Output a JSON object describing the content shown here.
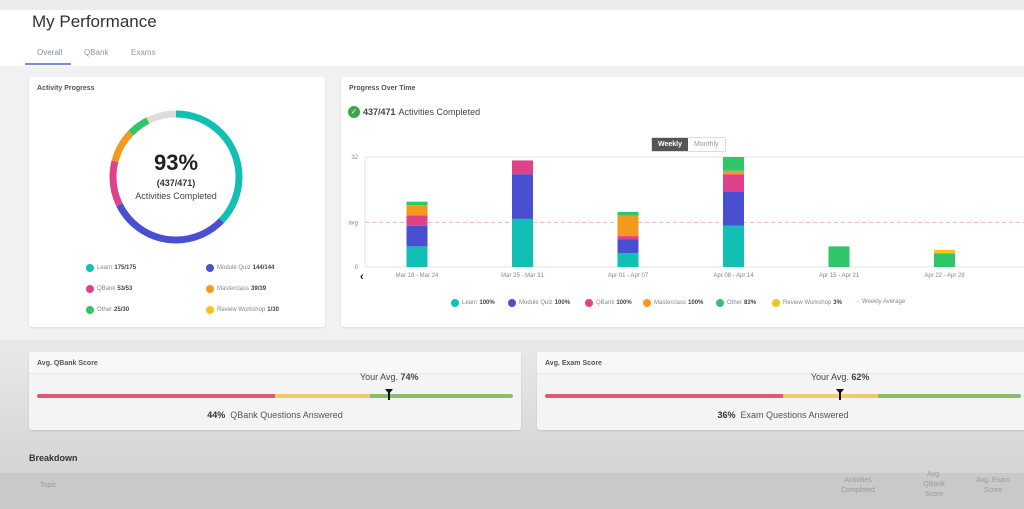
{
  "header": {
    "title": "My Performance",
    "tabs": [
      {
        "label": "Overall",
        "active": true
      },
      {
        "label": "QBank"
      },
      {
        "label": "Exams"
      }
    ]
  },
  "activity_progress": {
    "title": "Activity Progress",
    "percent": "93%",
    "fraction": "(437/471)",
    "caption": "Activities Completed",
    "total": 471,
    "remaining_color": "#dddddd",
    "items": [
      {
        "label": "Learn",
        "value": "175/175",
        "done": 175,
        "color": "#12bfb5"
      },
      {
        "label": "Module Quiz",
        "value": "144/144",
        "done": 144,
        "color": "#4a4fd1"
      },
      {
        "label": "QBank",
        "value": "53/53",
        "done": 53,
        "color": "#e0428a"
      },
      {
        "label": "Masterclass",
        "value": "39/39",
        "done": 39,
        "color": "#f39a1e"
      },
      {
        "label": "Other",
        "value": "25/30",
        "done": 25,
        "color": "#2fc56a"
      },
      {
        "label": "Review Workshop",
        "value": "1/30",
        "done": 1,
        "color": "#f4c51c"
      }
    ]
  },
  "progress_over_time": {
    "title": "Progress Over Time",
    "summary_value": "437/471",
    "summary_label": "Activities Completed",
    "toggle": {
      "weekly": "Weekly",
      "monthly": "Monthly",
      "selected": "Weekly"
    },
    "prev_icon": "‹"
  },
  "chart_data": {
    "type": "bar",
    "stacked": true,
    "categories": [
      "Mar 18 - Mar 24",
      "Mar 25 - Mar 31",
      "Apr 01 - Apr 07",
      "Apr 08 - Apr 14",
      "Apr 15 - Apr 21",
      "Apr 22 - Apr 28"
    ],
    "yticks": [
      "0",
      "avg",
      "32"
    ],
    "ylim": [
      0,
      32
    ],
    "weekly_average": 13,
    "series": [
      {
        "name": "Learn",
        "pct": "100%",
        "color": "#12bfb5",
        "values": [
          6,
          14,
          4,
          12,
          0,
          0
        ]
      },
      {
        "name": "Module Quiz",
        "pct": "100%",
        "color": "#4a4fd1",
        "values": [
          6,
          13,
          4,
          10,
          0,
          0
        ]
      },
      {
        "name": "QBank",
        "pct": "100%",
        "color": "#e0428a",
        "values": [
          3,
          4,
          1,
          5,
          0,
          0
        ]
      },
      {
        "name": "Masterclass",
        "pct": "100%",
        "color": "#f39a1e",
        "values": [
          3,
          0,
          6,
          1,
          0,
          0
        ]
      },
      {
        "name": "Other",
        "pct": "83%",
        "color": "#2fc56a",
        "values": [
          1,
          0,
          1,
          4,
          6,
          4
        ]
      },
      {
        "name": "Review Workshop",
        "pct": "3%",
        "color": "#f4c51c",
        "values": [
          0,
          0,
          0,
          0,
          0,
          1
        ]
      }
    ],
    "avg_legend": "Weekly Average",
    "grid": false,
    "legend": "bottom"
  },
  "qbank_score": {
    "title": "Avg. QBank Score",
    "avg_label": "Your Avg.",
    "avg_value": "74%",
    "avg": 74,
    "answered_value": "44%",
    "answered_label": "QBank Questions Answered"
  },
  "exam_score": {
    "title": "Avg. Exam Score",
    "avg_label": "Your Avg.",
    "avg_value": "62%",
    "avg": 62,
    "answered_value": "36%",
    "answered_label": "Exam Questions Answered"
  },
  "score_bands": {
    "colors": [
      "#dc5a78",
      "#efcb6e",
      "#8cbd6d"
    ],
    "bounds": [
      50,
      70,
      100
    ]
  },
  "breakdown": {
    "title": "Breakdown",
    "columns": [
      "Topic",
      "Activities Completed",
      "Avg. QBank Score",
      "Avg. Exam Score"
    ]
  }
}
